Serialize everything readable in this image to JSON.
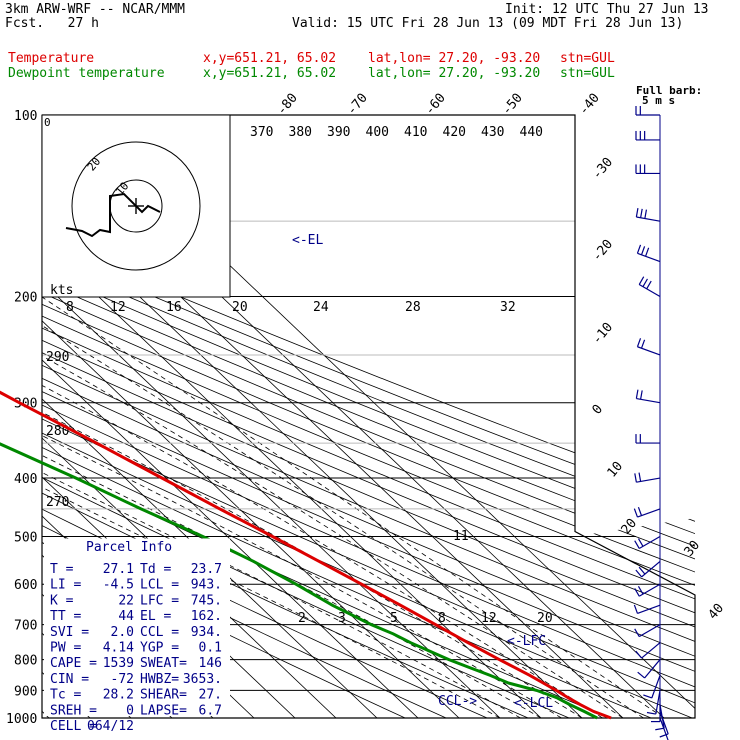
{
  "header": {
    "model": "3km ARW-WRF -- NCAR/MMM",
    "init": "Init: 12 UTC Thu 27 Jun 13",
    "fcst_label": "Fcst.",
    "fcst_value": "27 h",
    "valid": "Valid: 15 UTC Fri 28 Jun 13 (09 MDT Fri 28 Jun 13)"
  },
  "legend": [
    {
      "name": "Temperature",
      "xy": "x,y=651.21, 65.02",
      "latlon": "lat,lon= 27.20, -93.20",
      "stn": "stn=GUL",
      "color": "#dd0000"
    },
    {
      "name": "Dewpoint temperature",
      "xy": "x,y=651.21, 65.02",
      "latlon": "lat,lon= 27.20, -93.20",
      "stn": "stn=GUL",
      "color": "#008800"
    }
  ],
  "parcel_info": {
    "title": "Parcel Info",
    "rows": [
      [
        "T  =",
        "27.1",
        "Td =",
        "23.7"
      ],
      [
        "LI =",
        "-4.5",
        "LCL =",
        "943."
      ],
      [
        "K  =",
        "22",
        "LFC =",
        "745."
      ],
      [
        "TT =",
        "44",
        "EL =",
        "162."
      ],
      [
        "SVI =",
        "2.0",
        "CCL =",
        "934."
      ],
      [
        "PW =",
        "4.14",
        "YGP =",
        "0.1"
      ],
      [
        "CAPE =",
        "1539",
        "SWEAT=",
        "146"
      ],
      [
        "CIN =",
        "-72",
        "HWBZ=",
        "3653."
      ],
      [
        "Tc =",
        "28.2",
        "SHEAR=",
        "27."
      ],
      [
        "SREH =",
        "0",
        "LAPSE=",
        "6.7"
      ],
      [
        "CELL =",
        "064/12",
        "",
        ""
      ]
    ]
  },
  "wind_key": {
    "title": "Full barb:",
    "value": "5 m s"
  },
  "hodograph": {
    "unit": "kts",
    "ring_labels": [
      "10",
      "20"
    ],
    "corner_label": "0"
  },
  "annotations": {
    "el": "<-EL",
    "lfc": "<-LFC",
    "lcl": "<-LCL",
    "ccl": "CCL->"
  },
  "chart_data": {
    "type": "line",
    "title": "",
    "pressure_levels": [
      100,
      200,
      300,
      400,
      500,
      600,
      700,
      800,
      900,
      1000
    ],
    "isotherm_labels": [
      -80,
      -70,
      -60,
      -50,
      -40,
      -30,
      -20,
      -10,
      0,
      10,
      20,
      30,
      40
    ],
    "theta_e_labels": [
      370,
      380,
      390,
      400,
      410,
      420,
      430,
      440
    ],
    "mixing_ratio_labels": [
      8,
      12,
      16,
      20,
      24,
      28,
      32
    ],
    "mixing_ratio_low_labels": [
      2,
      3,
      5,
      8,
      12,
      20
    ],
    "theta_labels": [
      290,
      280,
      270
    ],
    "moist_label": "11",
    "series": [
      {
        "name": "Temperature",
        "color": "#dd0000",
        "p": [
          1000,
          975,
          950,
          925,
          900,
          875,
          850,
          825,
          800,
          750,
          700,
          650,
          600,
          550,
          500,
          450,
          400,
          350,
          300,
          250,
          200,
          175,
          150,
          125,
          110,
          100
        ],
        "t": [
          27.1,
          24.5,
          23.0,
          21.8,
          20.8,
          19.5,
          18.2,
          16.5,
          14.8,
          11.5,
          8.2,
          4.6,
          0.5,
          -4.0,
          -9.0,
          -14.8,
          -21.0,
          -28.0,
          -36.5,
          -46.0,
          -56.0,
          -62.5,
          -70.5,
          -76.5,
          -79.0,
          -79.5
        ]
      },
      {
        "name": "Dewpoint temperature",
        "color": "#008800",
        "p": [
          1000,
          975,
          950,
          925,
          900,
          875,
          850,
          825,
          800,
          775,
          750,
          725,
          700,
          650,
          600,
          550,
          500,
          450,
          400,
          350,
          300,
          260,
          240,
          220,
          200,
          175,
          150,
          125,
          110,
          100
        ],
        "t": [
          23.7,
          22.2,
          20.5,
          19.0,
          16.0,
          11.0,
          8.5,
          5.5,
          2.5,
          0.0,
          -2.5,
          -4.5,
          -7.5,
          -12.0,
          -15.5,
          -20.0,
          -26.0,
          -34.0,
          -42.0,
          -52.0,
          -62.0,
          -70.0,
          -76.0,
          -80.0,
          -83.5,
          -87.0,
          -89.0,
          -90.0,
          -88.5,
          -86.0
        ]
      }
    ],
    "wind_barbs": [
      {
        "p": 1000,
        "dir": 160,
        "spd": 5
      },
      {
        "p": 975,
        "dir": 160,
        "spd": 5
      },
      {
        "p": 950,
        "dir": 170,
        "spd": 5
      },
      {
        "p": 925,
        "dir": 180,
        "spd": 5
      },
      {
        "p": 900,
        "dir": 190,
        "spd": 5
      },
      {
        "p": 850,
        "dir": 200,
        "spd": 5
      },
      {
        "p": 800,
        "dir": 220,
        "spd": 5
      },
      {
        "p": 750,
        "dir": 230,
        "spd": 5
      },
      {
        "p": 700,
        "dir": 240,
        "spd": 5
      },
      {
        "p": 650,
        "dir": 250,
        "spd": 5
      },
      {
        "p": 600,
        "dir": 240,
        "spd": 10
      },
      {
        "p": 550,
        "dir": 230,
        "spd": 10
      },
      {
        "p": 500,
        "dir": 240,
        "spd": 10
      },
      {
        "p": 450,
        "dir": 250,
        "spd": 10
      },
      {
        "p": 400,
        "dir": 260,
        "spd": 10
      },
      {
        "p": 350,
        "dir": 270,
        "spd": 10
      },
      {
        "p": 300,
        "dir": 280,
        "spd": 10
      },
      {
        "p": 250,
        "dir": 290,
        "spd": 10
      },
      {
        "p": 200,
        "dir": 300,
        "spd": 15
      },
      {
        "p": 175,
        "dir": 290,
        "spd": 15
      },
      {
        "p": 150,
        "dir": 280,
        "spd": 15
      },
      {
        "p": 125,
        "dir": 270,
        "spd": 15
      },
      {
        "p": 110,
        "dir": 270,
        "spd": 15
      },
      {
        "p": 100,
        "dir": 270,
        "spd": 10
      }
    ]
  }
}
